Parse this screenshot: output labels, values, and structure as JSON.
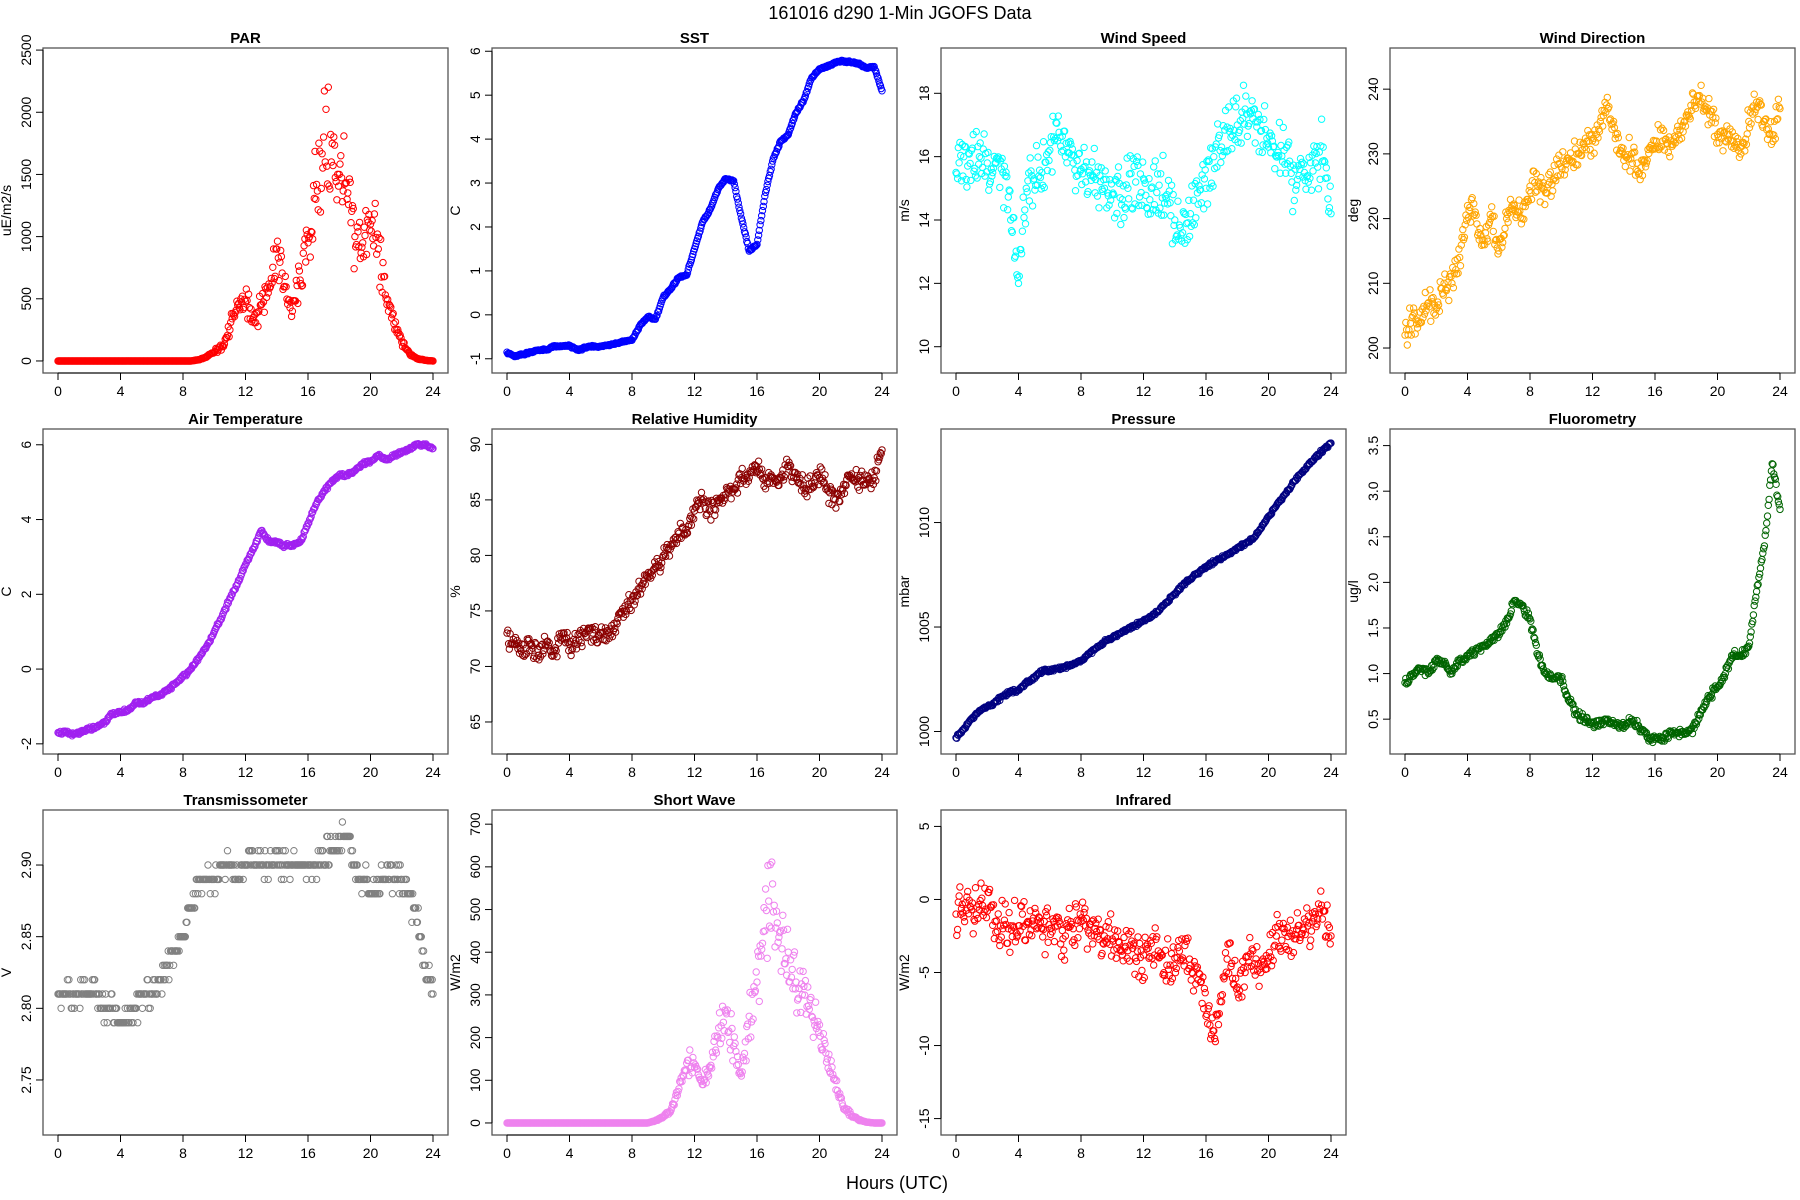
{
  "figure": {
    "title": "161016   d290   1-Min  JGOFS Data",
    "xlabel": "Hours (UTC)"
  },
  "chart_data": [
    {
      "type": "scatter",
      "title": "PAR",
      "ylabel": "uE/m2/s",
      "color": "#ff0000",
      "xlim": [
        0,
        24
      ],
      "ylim": [
        0,
        2420
      ],
      "xticks": [
        "0",
        "4",
        "8",
        "12",
        "16",
        "20",
        "24"
      ],
      "yticks": [
        "0",
        "500",
        "1000",
        "1500",
        "2000",
        "2500"
      ],
      "ytick_values": [
        0,
        500,
        1000,
        1500,
        2000,
        2500
      ],
      "x_step": 0.5,
      "spread": 0.35,
      "spread_relative": true,
      "values": [
        0,
        0,
        0,
        0,
        0,
        0,
        0,
        0,
        0,
        0,
        0,
        0,
        0,
        0,
        0,
        0,
        0,
        0,
        10,
        30,
        70,
        120,
        250,
        450,
        480,
        350,
        450,
        620,
        900,
        600,
        400,
        650,
        950,
        1300,
        1800,
        1600,
        1500,
        1300,
        1000,
        950,
        1100,
        900,
        500,
        300,
        150,
        60,
        20,
        5,
        0
      ]
    },
    {
      "type": "scatter",
      "title": "SST",
      "ylabel": "C",
      "color": "#0000ff",
      "xlim": [
        0,
        24
      ],
      "ylim": [
        -1.05,
        5.8
      ],
      "xticks": [
        "0",
        "4",
        "8",
        "12",
        "16",
        "20",
        "24"
      ],
      "yticks": [
        "-1",
        "0",
        "1",
        "2",
        "3",
        "4",
        "5",
        "6"
      ],
      "ytick_values": [
        -1,
        0,
        1,
        2,
        3,
        4,
        5,
        6
      ],
      "x_step": 0.5,
      "spread": 0.03,
      "spread_relative": false,
      "values": [
        -0.85,
        -0.95,
        -0.9,
        -0.85,
        -0.8,
        -0.8,
        -0.72,
        -0.72,
        -0.7,
        -0.8,
        -0.75,
        -0.72,
        -0.72,
        -0.68,
        -0.65,
        -0.6,
        -0.58,
        -0.25,
        -0.05,
        -0.1,
        0.4,
        0.6,
        0.85,
        0.9,
        1.5,
        2.1,
        2.4,
        2.85,
        3.1,
        3.05,
        2.2,
        1.45,
        1.6,
        2.7,
        3.5,
        3.95,
        4.1,
        4.6,
        4.9,
        5.4,
        5.6,
        5.65,
        5.75,
        5.78,
        5.75,
        5.72,
        5.62,
        5.65,
        5.1
      ]
    },
    {
      "type": "scatter",
      "title": "Wind Speed",
      "ylabel": "m/s",
      "color": "#00ffff",
      "xlim": [
        0,
        24
      ],
      "ylim": [
        9.55,
        19.05
      ],
      "xticks": [
        "0",
        "4",
        "8",
        "12",
        "16",
        "20",
        "24"
      ],
      "yticks": [
        "10",
        "12",
        "14",
        "16",
        "18"
      ],
      "ytick_values": [
        10,
        12,
        14,
        16,
        18
      ],
      "x_step": 0.5,
      "spread": 1.2,
      "spread_relative": false,
      "values": [
        15.5,
        16,
        16.2,
        16,
        15.8,
        15.8,
        15.5,
        14,
        12,
        15,
        15.3,
        15.5,
        16.2,
        16.5,
        16,
        15.8,
        15.6,
        15.5,
        15.5,
        15,
        14.8,
        14.7,
        15,
        15.2,
        15.3,
        15,
        15.1,
        14.8,
        14,
        13.6,
        14.2,
        14.5,
        15,
        16,
        16.3,
        16.8,
        17,
        17.5,
        17.2,
        16.8,
        16.3,
        16,
        16.2,
        15.2,
        15.6,
        15.4,
        15.8,
        16.3,
        14.2
      ]
    },
    {
      "type": "scatter",
      "title": "Wind Direction",
      "ylabel": "deg",
      "color": "#ffa500",
      "xlim": [
        0,
        24
      ],
      "ylim": [
        198,
        244.5
      ],
      "xticks": [
        "0",
        "4",
        "8",
        "12",
        "16",
        "20",
        "24"
      ],
      "yticks": [
        "200",
        "210",
        "220",
        "230",
        "240"
      ],
      "ytick_values": [
        200,
        210,
        220,
        230,
        240
      ],
      "x_step": 0.5,
      "spread": 3,
      "spread_relative": false,
      "values": [
        202,
        205,
        204,
        207,
        206,
        210,
        210,
        214,
        222,
        221,
        216,
        220,
        215,
        220,
        222,
        220,
        225,
        225,
        224,
        226,
        228,
        229,
        230,
        231,
        232,
        235,
        237,
        233,
        229,
        230,
        227,
        229,
        232,
        232,
        232,
        233,
        236,
        238,
        238,
        236,
        233,
        232,
        232,
        230,
        235,
        238,
        235,
        233,
        237
      ]
    },
    {
      "type": "scatter",
      "title": "Air Temperature",
      "ylabel": "C",
      "color": "#a020f0",
      "xlim": [
        0,
        24
      ],
      "ylim": [
        -1.95,
        6.1
      ],
      "xticks": [
        "0",
        "4",
        "8",
        "12",
        "16",
        "20",
        "24"
      ],
      "yticks": [
        "-2",
        "0",
        "2",
        "4",
        "6"
      ],
      "ytick_values": [
        -2,
        0,
        2,
        4,
        6
      ],
      "x_step": 0.5,
      "spread": 0.06,
      "spread_relative": false,
      "values": [
        -1.7,
        -1.7,
        -1.75,
        -1.7,
        -1.6,
        -1.55,
        -1.4,
        -1.2,
        -1.15,
        -1.1,
        -0.9,
        -0.9,
        -0.75,
        -0.7,
        -0.55,
        -0.4,
        -0.2,
        0,
        0.3,
        0.6,
        1,
        1.4,
        1.9,
        2.3,
        2.8,
        3.2,
        3.7,
        3.4,
        3.4,
        3.3,
        3.3,
        3.4,
        3.9,
        4.4,
        4.75,
        5,
        5.2,
        5.2,
        5.3,
        5.5,
        5.55,
        5.7,
        5.6,
        5.7,
        5.8,
        5.9,
        6,
        6,
        5.9
      ]
    },
    {
      "type": "scatter",
      "title": "Relative Humidity",
      "ylabel": "%",
      "color": "#8b0000",
      "xlim": [
        0,
        24
      ],
      "ylim": [
        63.2,
        90.3
      ],
      "xticks": [
        "0",
        "4",
        "8",
        "12",
        "16",
        "20",
        "24"
      ],
      "yticks": [
        "65",
        "70",
        "75",
        "80",
        "85",
        "90"
      ],
      "ytick_values": [
        65,
        70,
        75,
        80,
        85,
        90
      ],
      "x_step": 0.5,
      "spread": 1.2,
      "spread_relative": false,
      "values": [
        73,
        72,
        71,
        72,
        71,
        72,
        71,
        73,
        72,
        72,
        73,
        73,
        73,
        73,
        74,
        75,
        76,
        77,
        78,
        79,
        80,
        81,
        82,
        82,
        84,
        85,
        84,
        85,
        85.5,
        86,
        87,
        87,
        88,
        87,
        87,
        87,
        88,
        87,
        86,
        86.5,
        87,
        86,
        85,
        86,
        87,
        87,
        86.5,
        87,
        89.5
      ]
    },
    {
      "type": "scatter",
      "title": "Pressure",
      "ylabel": "mbar",
      "color": "#000080",
      "xlim": [
        0,
        24
      ],
      "ylim": [
        999.5,
        1013.9
      ],
      "xticks": [
        "0",
        "4",
        "8",
        "12",
        "16",
        "20",
        "24"
      ],
      "yticks": [
        "1000",
        "1005",
        "1010"
      ],
      "ytick_values": [
        1000,
        1005,
        1010
      ],
      "x_step": 0.5,
      "spread": 0.1,
      "spread_relative": false,
      "values": [
        999.7,
        1000.1,
        1000.6,
        1001,
        1001.2,
        1001.4,
        1001.7,
        1001.9,
        1002,
        1002.3,
        1002.6,
        1002.9,
        1002.9,
        1003,
        1003.1,
        1003.2,
        1003.4,
        1003.7,
        1004,
        1004.3,
        1004.5,
        1004.7,
        1004.9,
        1005.1,
        1005.3,
        1005.5,
        1005.8,
        1006.2,
        1006.6,
        1007,
        1007.3,
        1007.6,
        1007.9,
        1008.1,
        1008.3,
        1008.5,
        1008.8,
        1009,
        1009.2,
        1009.7,
        1010.3,
        1010.8,
        1011.3,
        1011.8,
        1012.3,
        1012.7,
        1013.1,
        1013.5,
        1013.8
      ]
    },
    {
      "type": "scatter",
      "title": "Fluorometry",
      "ylabel": "ug/l",
      "color": "#006400",
      "xlim": [
        0,
        24
      ],
      "ylim": [
        0.25,
        3.55
      ],
      "xticks": [
        "0",
        "4",
        "8",
        "12",
        "16",
        "20",
        "24"
      ],
      "yticks": [
        "0.5",
        "1.0",
        "1.5",
        "2.0",
        "2.5",
        "3.0",
        "3.5"
      ],
      "ytick_values": [
        0.5,
        1,
        1.5,
        2,
        2.5,
        3,
        3.5
      ],
      "x_step": 0.5,
      "spread": 0.06,
      "spread_relative": false,
      "values": [
        0.9,
        1,
        1.05,
        1,
        1.15,
        1.1,
        1,
        1.15,
        1.2,
        1.25,
        1.3,
        1.35,
        1.45,
        1.55,
        1.8,
        1.75,
        1.6,
        1.2,
        1,
        0.95,
        0.95,
        0.7,
        0.55,
        0.5,
        0.45,
        0.45,
        0.5,
        0.45,
        0.4,
        0.5,
        0.4,
        0.3,
        0.28,
        0.3,
        0.35,
        0.35,
        0.35,
        0.4,
        0.6,
        0.75,
        0.85,
        1,
        1.2,
        1.2,
        1.3,
        1.9,
        2.4,
        3.3,
        2.8
      ]
    },
    {
      "type": "scatter",
      "title": "Transmissometer",
      "ylabel": "V",
      "color": "#808080",
      "xlim": [
        0,
        24
      ],
      "ylim": [
        2.72,
        2.93
      ],
      "xticks": [
        "0",
        "4",
        "8",
        "12",
        "16",
        "20",
        "24"
      ],
      "yticks": [
        "2.75",
        "2.80",
        "2.85",
        "2.90"
      ],
      "ytick_values": [
        2.75,
        2.8,
        2.85,
        2.9
      ],
      "x_step": 0.5,
      "spread": 0.012,
      "spread_relative": false,
      "quantum": 0.01,
      "values": [
        2.81,
        2.81,
        2.81,
        2.81,
        2.81,
        2.81,
        2.8,
        2.8,
        2.79,
        2.79,
        2.8,
        2.81,
        2.81,
        2.82,
        2.83,
        2.84,
        2.85,
        2.87,
        2.89,
        2.89,
        2.89,
        2.9,
        2.9,
        2.89,
        2.9,
        2.9,
        2.9,
        2.9,
        2.9,
        2.9,
        2.9,
        2.9,
        2.9,
        2.9,
        2.9,
        2.91,
        2.91,
        2.92,
        2.9,
        2.89,
        2.88,
        2.89,
        2.89,
        2.89,
        2.89,
        2.88,
        2.86,
        2.83,
        2.81
      ]
    },
    {
      "type": "scatter",
      "title": "Short Wave",
      "ylabel": "W/m2",
      "color": "#ee82ee",
      "xlim": [
        0,
        24
      ],
      "ylim": [
        0,
        705
      ],
      "xticks": [
        "0",
        "4",
        "8",
        "12",
        "16",
        "20",
        "24"
      ],
      "yticks": [
        "0",
        "100",
        "200",
        "300",
        "400",
        "500",
        "600",
        "700"
      ],
      "ytick_values": [
        0,
        100,
        200,
        300,
        400,
        500,
        600,
        700
      ],
      "x_step": 0.5,
      "spread": 0.3,
      "spread_relative": true,
      "values": [
        0,
        0,
        0,
        0,
        0,
        0,
        0,
        0,
        0,
        0,
        0,
        0,
        0,
        0,
        0,
        0,
        0,
        0,
        0,
        5,
        15,
        30,
        80,
        140,
        130,
        90,
        130,
        200,
        260,
        180,
        110,
        250,
        330,
        450,
        560,
        450,
        400,
        330,
        320,
        250,
        230,
        150,
        100,
        40,
        20,
        8,
        2,
        0,
        0
      ]
    },
    {
      "type": "scatter",
      "title": "Infrared",
      "ylabel": "W/m2",
      "color": "#ff0000",
      "xlim": [
        0,
        24
      ],
      "ylim": [
        -15.3,
        5.3
      ],
      "xticks": [
        "0",
        "4",
        "8",
        "12",
        "16",
        "20",
        "24"
      ],
      "yticks": [
        "-15",
        "-10",
        "-5",
        "0",
        "5"
      ],
      "ytick_values": [
        -15,
        -10,
        -5,
        0,
        5
      ],
      "x_step": 0.5,
      "spread": 2,
      "spread_relative": false,
      "values": [
        -1,
        -1.2,
        -0.7,
        -0.7,
        -0.8,
        -1.5,
        -2,
        -1.8,
        -1.8,
        -1.7,
        -1.8,
        -2,
        -2,
        -1.8,
        -2.5,
        -2,
        -1.5,
        -2.3,
        -2.2,
        -2.5,
        -2.7,
        -3.5,
        -3.5,
        -4,
        -3.8,
        -3,
        -4,
        -4.5,
        -4,
        -4,
        -4.5,
        -5.5,
        -8,
        -9,
        -7,
        -3,
        -6,
        -5,
        -3.5,
        -5,
        -4,
        -2.5,
        -2,
        -2.5,
        -2.8,
        -1.8,
        -1,
        -0.8,
        -2.5
      ]
    }
  ]
}
